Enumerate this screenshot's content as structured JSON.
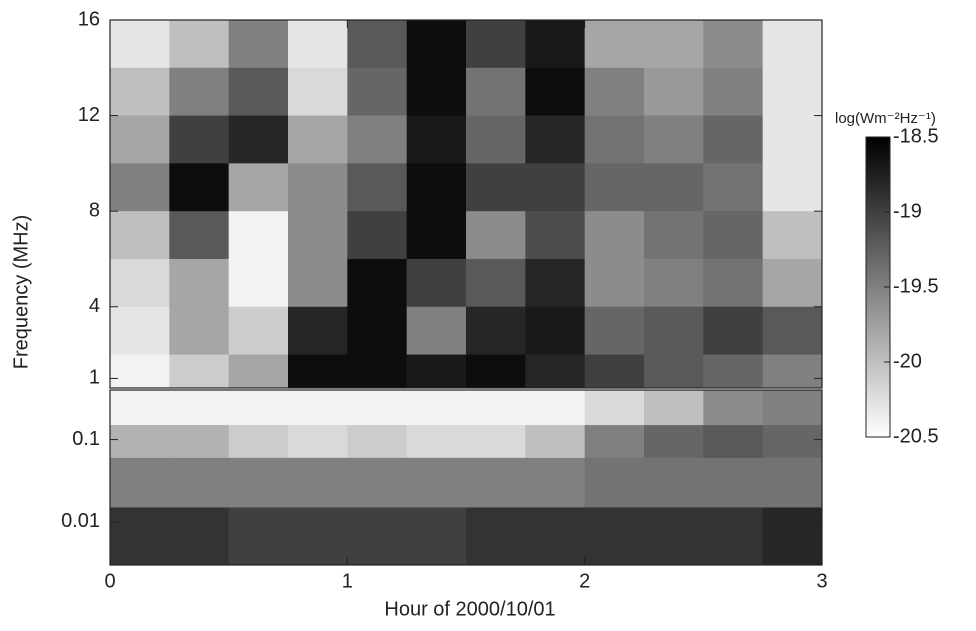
{
  "chart_data": {
    "type": "heatmap",
    "xlabel": "Hour of 2000/10/01",
    "ylabel": "Frequency  (MHz)",
    "xlim": [
      0,
      3
    ],
    "xticks": [
      0,
      1,
      2,
      3
    ],
    "xbins": [
      0,
      0.25,
      0.5,
      0.75,
      1,
      1.25,
      1.5,
      1.75,
      2,
      2.25,
      2.5,
      2.75,
      3
    ],
    "panels": [
      {
        "yscale": "linear",
        "ylim": [
          0.6,
          16
        ],
        "yticks": [
          1,
          4,
          8,
          12,
          16
        ],
        "ybins": [
          16,
          14,
          12,
          10,
          8,
          6,
          4,
          2,
          0.6
        ],
        "z": [
          [
            -20.3,
            -20.0,
            -19.5,
            -20.3,
            -19.2,
            -18.6,
            -19.0,
            -18.7,
            -19.8,
            -19.8,
            -19.6,
            -20.3
          ],
          [
            -20.0,
            -19.5,
            -19.2,
            -20.2,
            -19.3,
            -18.6,
            -19.4,
            -18.6,
            -19.5,
            -19.7,
            -19.5,
            -20.3
          ],
          [
            -19.8,
            -19.0,
            -18.8,
            -19.8,
            -19.5,
            -18.7,
            -19.3,
            -18.8,
            -19.4,
            -19.5,
            -19.3,
            -20.3
          ],
          [
            -19.5,
            -18.6,
            -19.8,
            -19.6,
            -19.2,
            -18.6,
            -19.0,
            -19.0,
            -19.3,
            -19.3,
            -19.4,
            -20.3
          ],
          [
            -20.0,
            -19.2,
            -20.4,
            -19.6,
            -19.0,
            -18.6,
            -19.6,
            -19.1,
            -19.6,
            -19.4,
            -19.3,
            -20.0
          ],
          [
            -20.2,
            -19.8,
            -20.4,
            -19.6,
            -18.6,
            -19.0,
            -19.2,
            -18.8,
            -19.6,
            -19.5,
            -19.4,
            -19.8
          ],
          [
            -20.3,
            -19.8,
            -20.1,
            -18.8,
            -18.6,
            -19.5,
            -18.8,
            -18.7,
            -19.3,
            -19.2,
            -19.0,
            -19.2
          ],
          [
            -20.4,
            -20.1,
            -19.8,
            -18.6,
            -18.6,
            -18.7,
            -18.6,
            -18.8,
            -19.0,
            -19.2,
            -19.3,
            -19.5
          ]
        ]
      },
      {
        "yscale": "log",
        "ylim": [
          0.003,
          0.4
        ],
        "yticks": [
          0.01,
          0.1
        ],
        "ybins": [
          0.4,
          0.15,
          0.06,
          0.015,
          0.003
        ],
        "z": [
          [
            -20.4,
            -20.4,
            -20.4,
            -20.4,
            -20.4,
            -20.4,
            -20.4,
            -20.4,
            -20.2,
            -20.0,
            -19.6,
            -19.5
          ],
          [
            -19.9,
            -19.9,
            -20.1,
            -20.2,
            -20.1,
            -20.2,
            -20.2,
            -20.0,
            -19.5,
            -19.3,
            -19.2,
            -19.3
          ],
          [
            -19.5,
            -19.5,
            -19.5,
            -19.5,
            -19.5,
            -19.5,
            -19.5,
            -19.5,
            -19.4,
            -19.4,
            -19.4,
            -19.4
          ],
          [
            -18.9,
            -18.9,
            -19.0,
            -19.0,
            -19.0,
            -19.0,
            -18.9,
            -18.9,
            -18.9,
            -18.9,
            -18.9,
            -18.8
          ]
        ]
      }
    ],
    "colorbar": {
      "label": "log(Wm⁻²Hz⁻¹)",
      "lim": [
        -20.5,
        -18.5
      ],
      "ticks": [
        -18.5,
        -19,
        -19.5,
        -20,
        -20.5
      ]
    }
  }
}
